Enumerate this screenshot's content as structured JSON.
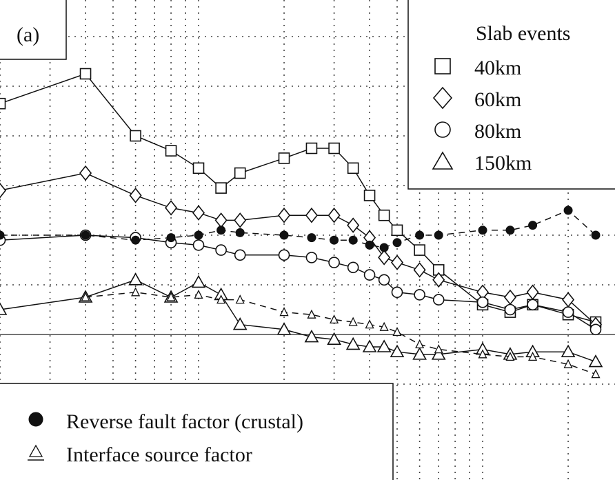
{
  "chart_data": {
    "type": "line",
    "panel_label": "(a)",
    "title": "",
    "xlabel": "",
    "ylabel": "",
    "x_scale": "log",
    "grid": true,
    "legend_slab": {
      "title": "Slab events",
      "position": "top-right"
    },
    "legend_factors": {
      "position": "bottom-left"
    },
    "series": [
      {
        "name": "40km",
        "marker": "square",
        "line": "solid",
        "points": [
          [
            0.02,
            0.93
          ],
          [
            0.04,
            1.05
          ],
          [
            0.06,
            0.8
          ],
          [
            0.08,
            0.74
          ],
          [
            0.1,
            0.67
          ],
          [
            0.12,
            0.59
          ],
          [
            0.14,
            0.65
          ],
          [
            0.2,
            0.71
          ],
          [
            0.25,
            0.75
          ],
          [
            0.3,
            0.75
          ],
          [
            0.35,
            0.67
          ],
          [
            0.4,
            0.56
          ],
          [
            0.45,
            0.48
          ],
          [
            0.5,
            0.42
          ],
          [
            0.6,
            0.34
          ],
          [
            0.7,
            0.26
          ],
          [
            1.0,
            0.12
          ],
          [
            1.25,
            0.09
          ],
          [
            1.5,
            0.12
          ],
          [
            2.0,
            0.08
          ],
          [
            2.5,
            0.05
          ]
        ]
      },
      {
        "name": "60km",
        "marker": "diamond",
        "line": "solid",
        "points": [
          [
            0.02,
            0.58
          ],
          [
            0.04,
            0.65
          ],
          [
            0.06,
            0.56
          ],
          [
            0.08,
            0.51
          ],
          [
            0.1,
            0.49
          ],
          [
            0.12,
            0.46
          ],
          [
            0.14,
            0.46
          ],
          [
            0.2,
            0.48
          ],
          [
            0.25,
            0.48
          ],
          [
            0.3,
            0.48
          ],
          [
            0.35,
            0.44
          ],
          [
            0.4,
            0.39
          ],
          [
            0.45,
            0.31
          ],
          [
            0.5,
            0.29
          ],
          [
            0.6,
            0.26
          ],
          [
            0.7,
            0.22
          ],
          [
            1.0,
            0.17
          ],
          [
            1.25,
            0.15
          ],
          [
            1.5,
            0.17
          ],
          [
            2.0,
            0.14
          ],
          [
            2.5,
            0.04
          ]
        ]
      },
      {
        "name": "80km",
        "marker": "circle",
        "line": "solid",
        "points": [
          [
            0.02,
            0.38
          ],
          [
            0.04,
            0.4
          ],
          [
            0.06,
            0.39
          ],
          [
            0.08,
            0.37
          ],
          [
            0.1,
            0.36
          ],
          [
            0.12,
            0.34
          ],
          [
            0.14,
            0.32
          ],
          [
            0.2,
            0.32
          ],
          [
            0.25,
            0.31
          ],
          [
            0.3,
            0.29
          ],
          [
            0.35,
            0.27
          ],
          [
            0.4,
            0.24
          ],
          [
            0.45,
            0.22
          ],
          [
            0.5,
            0.17
          ],
          [
            0.6,
            0.16
          ],
          [
            0.7,
            0.14
          ],
          [
            1.0,
            0.13
          ],
          [
            1.25,
            0.1
          ],
          [
            1.5,
            0.12
          ],
          [
            2.0,
            0.09
          ],
          [
            2.5,
            0.02
          ]
        ]
      },
      {
        "name": "150km",
        "marker": "triangle",
        "line": "solid",
        "points": [
          [
            0.02,
            0.1
          ],
          [
            0.04,
            0.15
          ],
          [
            0.06,
            0.22
          ],
          [
            0.08,
            0.15
          ],
          [
            0.1,
            0.21
          ],
          [
            0.12,
            0.16
          ],
          [
            0.14,
            0.04
          ],
          [
            0.2,
            0.02
          ],
          [
            0.25,
            -0.01
          ],
          [
            0.3,
            -0.02
          ],
          [
            0.35,
            -0.04
          ],
          [
            0.4,
            -0.05
          ],
          [
            0.45,
            -0.05
          ],
          [
            0.5,
            -0.07
          ],
          [
            0.6,
            -0.08
          ],
          [
            0.7,
            -0.08
          ],
          [
            1.0,
            -0.06
          ],
          [
            1.25,
            -0.08
          ],
          [
            1.5,
            -0.07
          ],
          [
            2.0,
            -0.07
          ],
          [
            2.5,
            -0.11
          ]
        ]
      },
      {
        "name": "Reverse fault factor (crustal)",
        "marker": "filled-circle",
        "line": "dashed",
        "points": [
          [
            0.02,
            0.4
          ],
          [
            0.04,
            0.4
          ],
          [
            0.06,
            0.38
          ],
          [
            0.08,
            0.39
          ],
          [
            0.1,
            0.4
          ],
          [
            0.12,
            0.42
          ],
          [
            0.14,
            0.41
          ],
          [
            0.2,
            0.4
          ],
          [
            0.25,
            0.39
          ],
          [
            0.3,
            0.38
          ],
          [
            0.35,
            0.38
          ],
          [
            0.4,
            0.36
          ],
          [
            0.45,
            0.35
          ],
          [
            0.5,
            0.37
          ],
          [
            0.6,
            0.4
          ],
          [
            0.7,
            0.4
          ],
          [
            1.0,
            0.42
          ],
          [
            1.25,
            0.42
          ],
          [
            1.5,
            0.44
          ],
          [
            2.0,
            0.5
          ],
          [
            2.5,
            0.4
          ]
        ]
      },
      {
        "name": "Interface source factor",
        "marker": "small-triangle",
        "line": "dashed",
        "points": [
          [
            0.04,
            0.15
          ],
          [
            0.06,
            0.17
          ],
          [
            0.08,
            0.15
          ],
          [
            0.1,
            0.16
          ],
          [
            0.12,
            0.14
          ],
          [
            0.14,
            0.14
          ],
          [
            0.2,
            0.09
          ],
          [
            0.25,
            0.08
          ],
          [
            0.3,
            0.06
          ],
          [
            0.35,
            0.05
          ],
          [
            0.4,
            0.04
          ],
          [
            0.45,
            0.03
          ],
          [
            0.5,
            0.01
          ],
          [
            0.6,
            -0.04
          ],
          [
            0.7,
            -0.06
          ],
          [
            1.0,
            -0.08
          ],
          [
            1.25,
            -0.09
          ],
          [
            1.5,
            -0.09
          ],
          [
            2.0,
            -0.12
          ],
          [
            2.5,
            -0.16
          ]
        ]
      }
    ]
  }
}
